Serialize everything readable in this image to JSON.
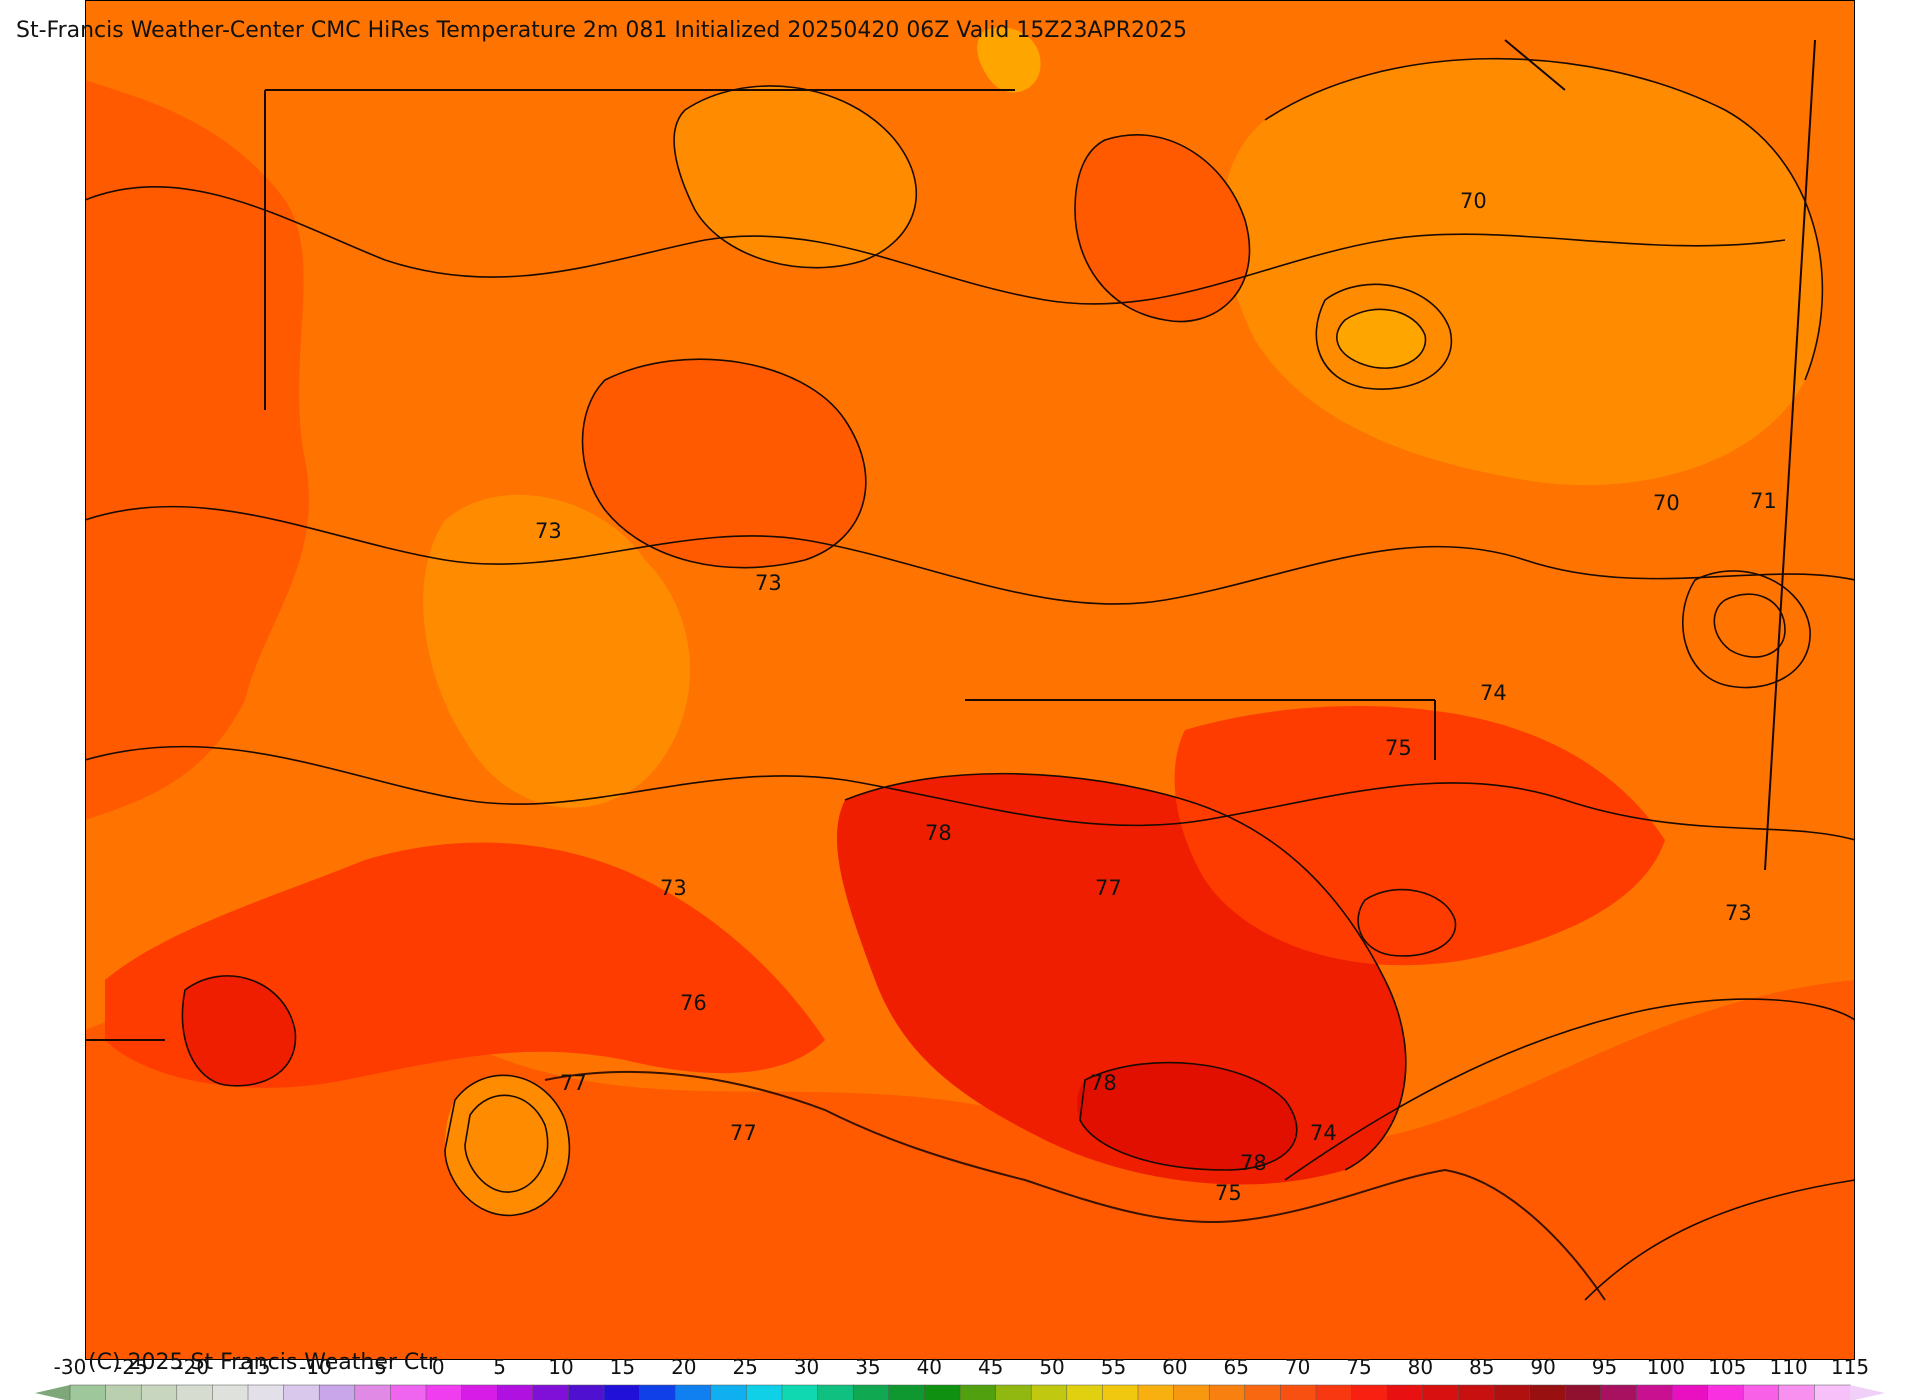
{
  "title": "St-Francis Weather-Center CMC HiRes Temperature 2m  081 Initialized 20250420 06Z Valid 15Z23APR2025",
  "copyright": "(C) 2025 St Francis Weather Ctr",
  "colorbar": {
    "ticks": [
      "-30",
      "-25",
      "-20",
      "-15",
      "-10",
      "-5",
      "0",
      "5",
      "10",
      "15",
      "20",
      "25",
      "30",
      "35",
      "40",
      "45",
      "50",
      "55",
      "60",
      "65",
      "70",
      "75",
      "80",
      "85",
      "90",
      "95",
      "100",
      "105",
      "110",
      "115"
    ],
    "colors": [
      "#9fc79c",
      "#b9cfb0",
      "#c8d6c0",
      "#d6dcd0",
      "#dfe2dc",
      "#e4e0ea",
      "#d9c8ec",
      "#c9a5e9",
      "#e08ae6",
      "#f065f0",
      "#f03df0",
      "#d81ce8",
      "#b010e0",
      "#8010d8",
      "#5010d0",
      "#2010d8",
      "#1040e8",
      "#1080f0",
      "#10b0f0",
      "#10d0e8",
      "#10d8b0",
      "#10c080",
      "#10a850",
      "#109830",
      "#109010",
      "#50a010",
      "#90b810",
      "#c0c810",
      "#e0d010",
      "#f0c810",
      "#f8b010",
      "#f89810",
      "#f88010",
      "#f86810",
      "#f85010",
      "#f83810",
      "#f82010",
      "#e81010",
      "#d81010",
      "#c81010",
      "#b01010",
      "#981010",
      "#901030",
      "#a81060",
      "#c81090",
      "#e810c0",
      "#f830e0",
      "#f860e8",
      "#f890f0",
      "#f8c0f8"
    ],
    "arrow_left_color": "#7ea87a",
    "arrow_right_color": "#f0d0f8"
  },
  "contour_labels": [
    {
      "text": "70"
    },
    {
      "text": "70"
    },
    {
      "text": "71"
    },
    {
      "text": "73"
    },
    {
      "text": "73"
    },
    {
      "text": "74"
    },
    {
      "text": "75"
    },
    {
      "text": "78"
    },
    {
      "text": "77"
    },
    {
      "text": "73"
    },
    {
      "text": "76"
    },
    {
      "text": "77"
    },
    {
      "text": "77"
    },
    {
      "text": "78"
    },
    {
      "text": "74"
    },
    {
      "text": "78"
    },
    {
      "text": "75"
    },
    {
      "text": "73"
    }
  ],
  "colors": {
    "orange_light": "#ff8c00",
    "orange": "#ff7300",
    "orange_red": "#ff5a00",
    "red_orange": "#ff3c00",
    "red": "#f01e00",
    "deep_red": "#e00f00",
    "yellow_orange": "#ffa500"
  }
}
